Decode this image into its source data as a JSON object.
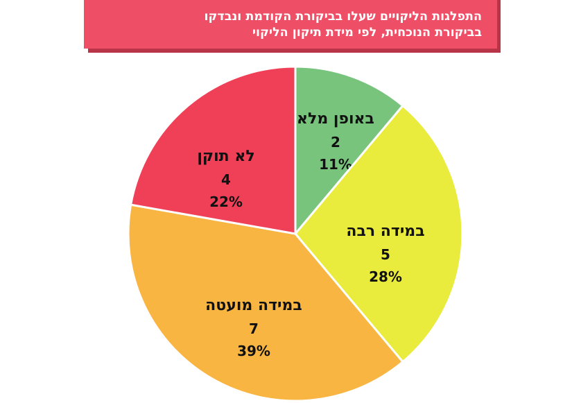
{
  "title": {
    "line1": "התפלגות הליקויים שעלו בביקורת הקודמת ונבדקו",
    "line2": "בביקורת הנוכחית, לפי מידת תיקון הליקוי"
  },
  "chart_data": {
    "type": "pie",
    "title": "התפלגות הליקויים שעלו בביקורת הקודמת ונבדקו בביקורת הנוכחית, לפי מידת תיקון הליקוי",
    "slices": [
      {
        "label": "באופן מלא",
        "value": 2,
        "percent": "11%",
        "color": "#79c47d"
      },
      {
        "label": "במידה רבה",
        "value": 5,
        "percent": "28%",
        "color": "#e9ec3d"
      },
      {
        "label": "במידה מועטה",
        "value": 7,
        "percent": "39%",
        "color": "#f8b542"
      },
      {
        "label": "לא תוקן",
        "value": 4,
        "percent": "22%",
        "color": "#ef4058"
      }
    ]
  }
}
